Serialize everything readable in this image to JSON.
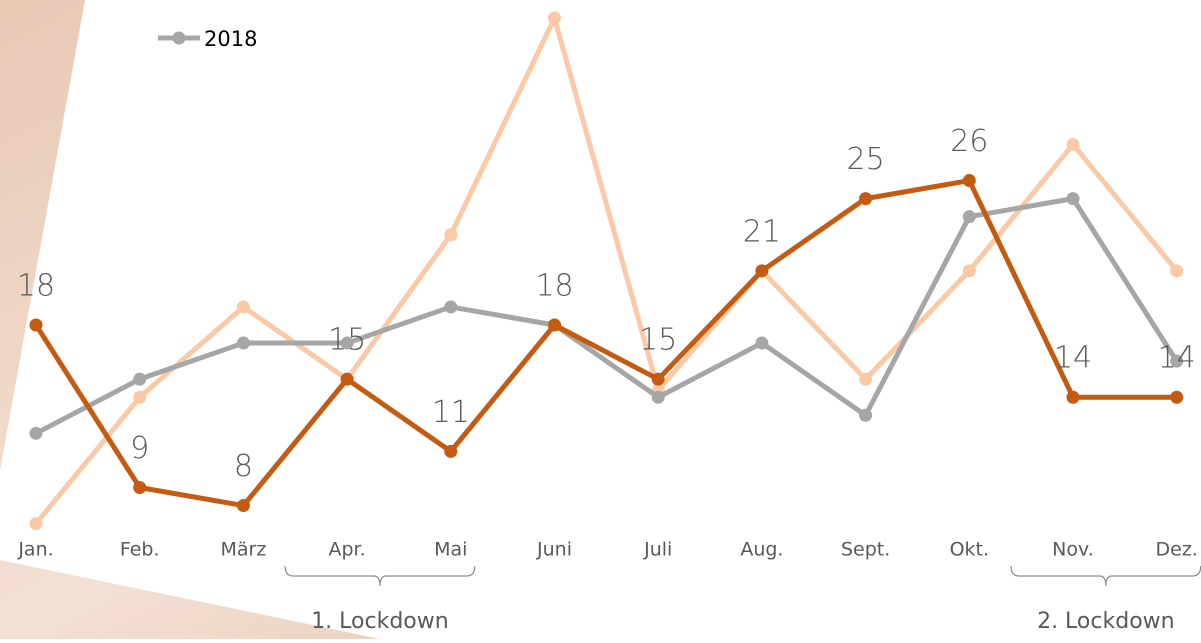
{
  "chart_data": {
    "type": "line",
    "categories": [
      "Jan.",
      "Feb.",
      "März",
      "Apr.",
      "Mai",
      "Juni",
      "Juli",
      "Aug.",
      "Sept.",
      "Okt.",
      "Nov.",
      "Dez."
    ],
    "series": [
      {
        "color": "#fbc9a6",
        "values": [
          7,
          14,
          19,
          15,
          23,
          35,
          14.4,
          21,
          15,
          21,
          28,
          21
        ]
      },
      {
        "name": "2018",
        "color": "#a6a6a6",
        "values": [
          12,
          15,
          17,
          17,
          19,
          18,
          14,
          17,
          13,
          24,
          25,
          16
        ]
      },
      {
        "color": "#c55a11",
        "values": [
          18,
          9,
          8,
          15,
          11,
          18,
          15,
          21,
          25,
          26,
          14,
          14
        ],
        "show_labels": true
      }
    ],
    "ylim": [
      0,
      36
    ],
    "annotations": [
      {
        "text": "1. Lockdown",
        "from": 3,
        "to": 4
      },
      {
        "text": "2. Lockdown",
        "from": 10,
        "to": 11
      }
    ]
  }
}
